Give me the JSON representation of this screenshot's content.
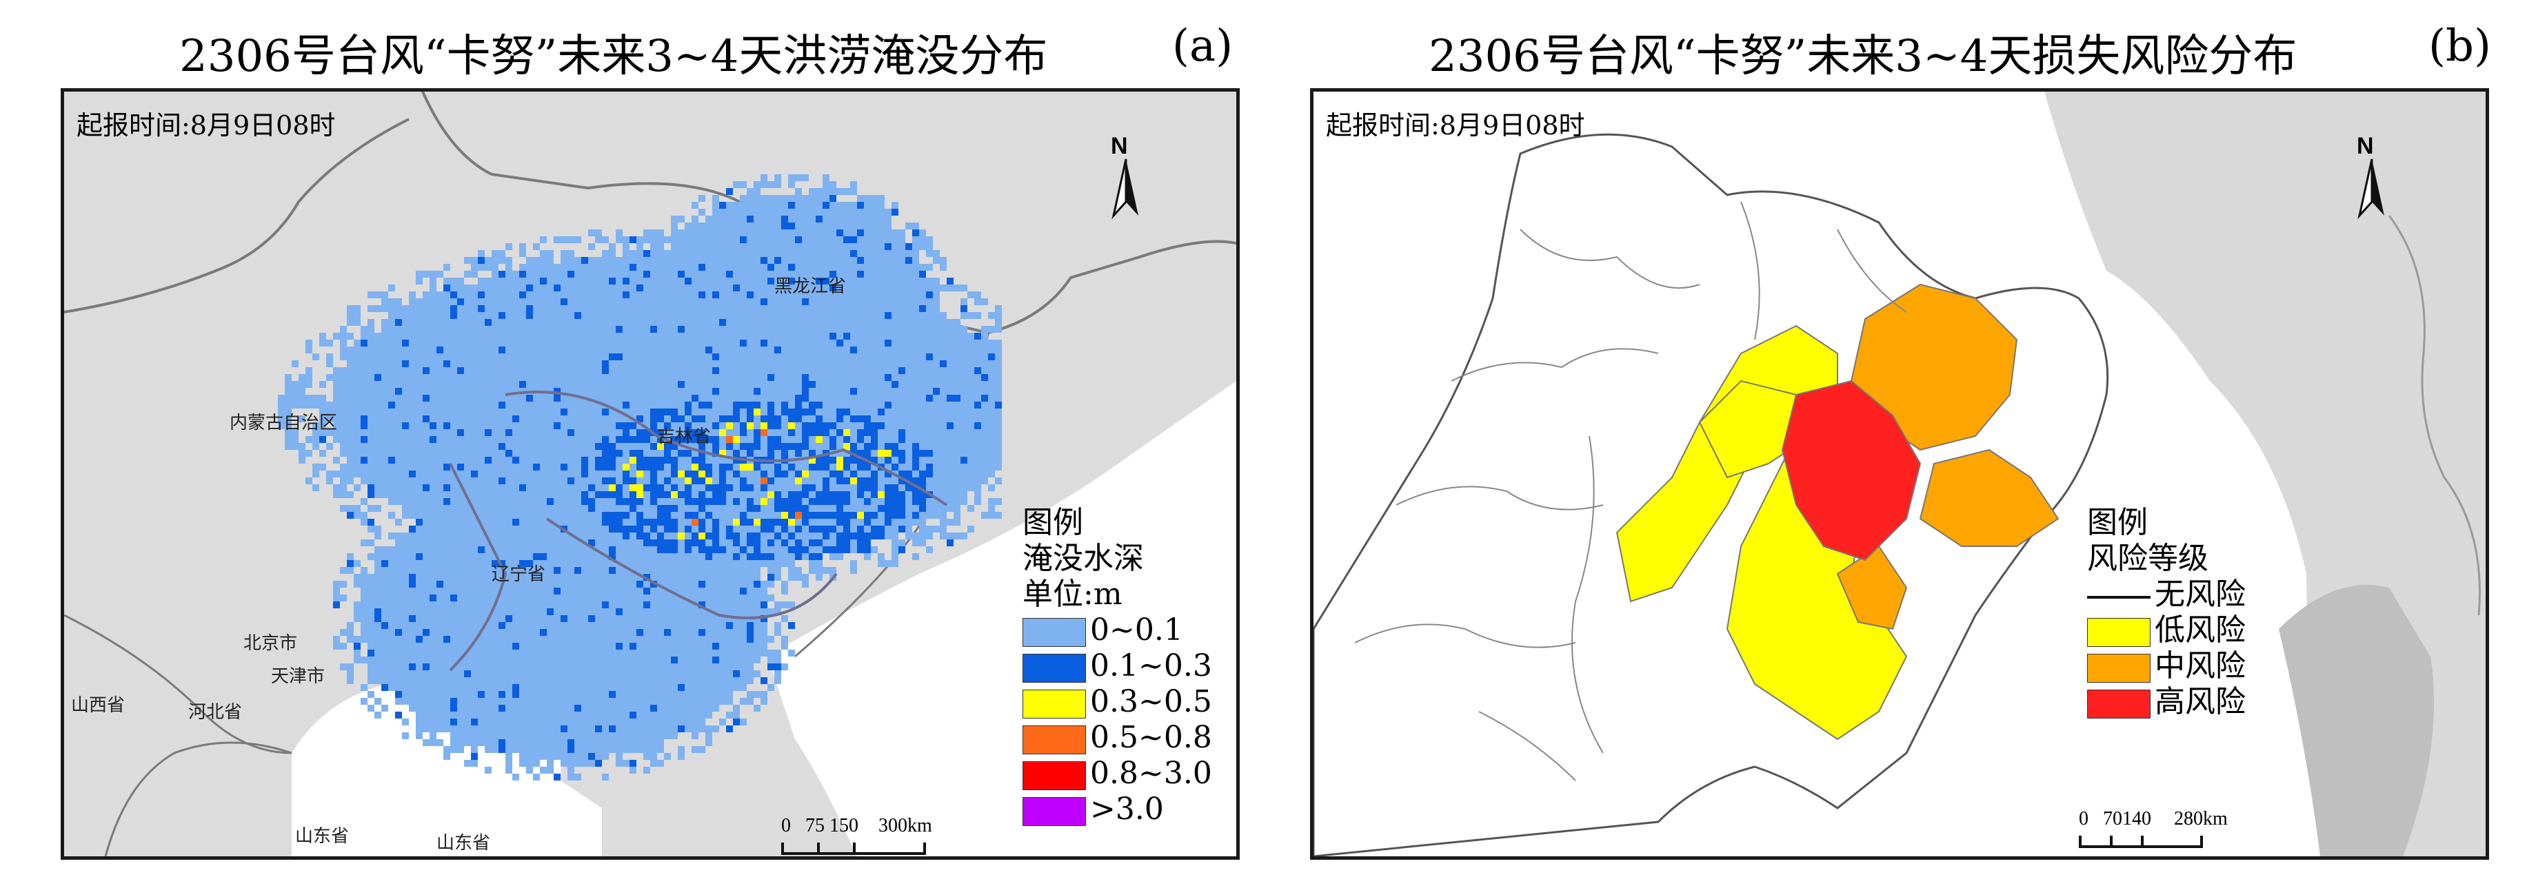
{
  "panel_a": {
    "title": "2306号台风“卡努”未来3~4天洪涝淹没分布",
    "tag": "(a)",
    "issue_time": "起报时间:8月9日08时",
    "north": "N",
    "provinces": {
      "heilongjiang": "黑龙江省",
      "jilin": "吉林省",
      "liaoning": "辽宁省",
      "inner_mongolia": "内蒙古自治区",
      "beijing": "北京市",
      "tianjin": "天津市",
      "hebei": "河北省",
      "shanxi": "山西省",
      "shandong1": "山东省",
      "shandong2": "山东省"
    },
    "legend": {
      "title1": "图例",
      "title2": "淹没水深",
      "title3": "单位:m",
      "items": [
        {
          "label": "0~0.1",
          "color": "#7fb2f0"
        },
        {
          "label": "0.1~0.3",
          "color": "#0a5ee0"
        },
        {
          "label": "0.3~0.5",
          "color": "#ffff00"
        },
        {
          "label": "0.5~0.8",
          "color": "#ff6a1a"
        },
        {
          "label": "0.8~3.0",
          "color": "#ff0000"
        },
        {
          "label": ">3.0",
          "color": "#c000ff"
        }
      ]
    },
    "scale": {
      "n0": "0",
      "n1": "75",
      "n2": "150",
      "n3": "300",
      "unit": "km"
    }
  },
  "panel_b": {
    "title": "2306号台风“卡努”未来3~4天损失风险分布",
    "tag": "(b)",
    "issue_time": "起报时间:8月9日08时",
    "north": "N",
    "legend": {
      "title1": "图例",
      "title2": "风险等级",
      "items": [
        {
          "label": "无风险",
          "type": "line",
          "color": "#ffffff"
        },
        {
          "label": "低风险",
          "color": "#ffff00"
        },
        {
          "label": "中风险",
          "color": "#ffa500"
        },
        {
          "label": "高风险",
          "color": "#ff2020"
        }
      ]
    },
    "scale": {
      "n0": "0",
      "n1": "70",
      "n2": "140",
      "n3": "280",
      "unit": "km"
    }
  }
}
